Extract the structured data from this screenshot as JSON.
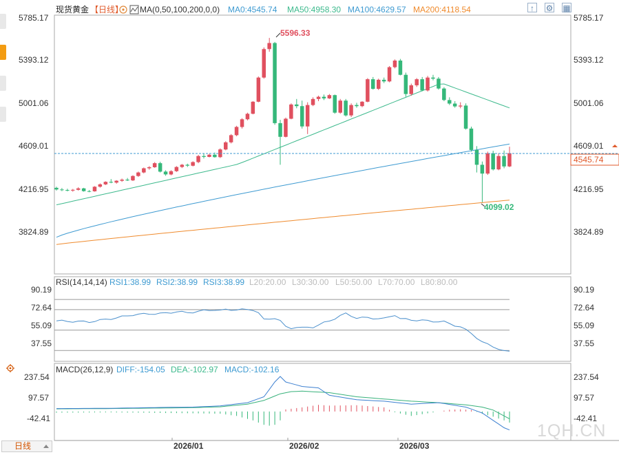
{
  "header": {
    "symbol": "现货黄金",
    "period_tag": "【日线】",
    "ma_label": "MA(0,50,100,200,0,0)",
    "ma0": "MA0:4545.74",
    "ma50": "MA50:4958.30",
    "ma100": "MA100:4629.57",
    "ma200": "MA200:4118.54"
  },
  "colors": {
    "up": "#e0505f",
    "down": "#35b87a",
    "ma50": "#3cb98c",
    "ma100": "#3d9ad1",
    "ma200": "#ef8a2c",
    "rsi": "#4a8fcc",
    "diff": "#3b7fd0",
    "dea": "#36b17a",
    "macd_pos": "#e0505f",
    "macd_neg": "#35b87a",
    "current": "#e05a2b",
    "grid": "#999999"
  },
  "icons": [
    "arrow-up-icon",
    "gear-icon",
    "grid-icon",
    "bar-icon",
    "kline-icon"
  ],
  "price_axis": {
    "ticks": [
      "5785.17",
      "5393.12",
      "5001.06",
      "4609.01",
      "4216.95",
      "3824.89"
    ],
    "current": "4545.74"
  },
  "annotations": {
    "high": "5596.33",
    "low": "4099.02"
  },
  "rsi_panel": {
    "title": "RSI(14,14,14)",
    "rsi1": "RSI1:38.99",
    "rsi2": "RSI2:38.99",
    "rsi3": "RSI3:38.99",
    "levels": [
      "L20:20.00",
      "L30:30.00",
      "L50:50.00",
      "L70:70.00",
      "L80:80.00"
    ],
    "ticks": [
      "90.19",
      "72.64",
      "55.09",
      "37.55"
    ]
  },
  "macd_panel": {
    "title": "MACD(26,12,9)",
    "diff": "DIFF:-154.05",
    "dea": "DEA:-102.97",
    "macd": "MACD:-102.16",
    "ticks": [
      "237.54",
      "97.57",
      "-42.41"
    ]
  },
  "time_axis": [
    "2026/01",
    "2026/02",
    "2026/03"
  ],
  "period_button": "日线",
  "watermark": "1QH.CN",
  "chart_data": {
    "type": "candlestick",
    "title": "现货黄金【日线】",
    "ylim": [
      3700,
      5900
    ],
    "candles": [
      [
        4230,
        4240,
        4205,
        4215
      ],
      [
        4215,
        4228,
        4200,
        4210
      ],
      [
        4210,
        4222,
        4198,
        4205
      ],
      [
        4205,
        4220,
        4195,
        4212
      ],
      [
        4212,
        4235,
        4205,
        4225
      ],
      [
        4225,
        4230,
        4195,
        4200
      ],
      [
        4200,
        4210,
        4190,
        4198
      ],
      [
        4198,
        4245,
        4195,
        4240
      ],
      [
        4240,
        4270,
        4232,
        4262
      ],
      [
        4262,
        4290,
        4255,
        4285
      ],
      [
        4285,
        4310,
        4272,
        4278
      ],
      [
        4278,
        4300,
        4268,
        4295
      ],
      [
        4295,
        4315,
        4285,
        4305
      ],
      [
        4305,
        4320,
        4292,
        4298
      ],
      [
        4298,
        4345,
        4292,
        4338
      ],
      [
        4338,
        4378,
        4330,
        4370
      ],
      [
        4370,
        4415,
        4362,
        4408
      ],
      [
        4408,
        4428,
        4395,
        4418
      ],
      [
        4418,
        4465,
        4412,
        4455
      ],
      [
        4455,
        4468,
        4370,
        4378
      ],
      [
        4378,
        4390,
        4340,
        4352
      ],
      [
        4352,
        4390,
        4345,
        4382
      ],
      [
        4382,
        4428,
        4375,
        4420
      ],
      [
        4420,
        4448,
        4410,
        4440
      ],
      [
        4440,
        4450,
        4420,
        4432
      ],
      [
        4432,
        4472,
        4425,
        4465
      ],
      [
        4465,
        4530,
        4455,
        4520
      ],
      [
        4520,
        4540,
        4498,
        4512
      ],
      [
        4512,
        4540,
        4508,
        4532
      ],
      [
        4532,
        4552,
        4505,
        4510
      ],
      [
        4510,
        4590,
        4502,
        4580
      ],
      [
        4580,
        4655,
        4572,
        4645
      ],
      [
        4645,
        4720,
        4635,
        4710
      ],
      [
        4710,
        4795,
        4700,
        4785
      ],
      [
        4785,
        4865,
        4770,
        4855
      ],
      [
        4855,
        4915,
        4845,
        4905
      ],
      [
        4905,
        5020,
        4900,
        5015
      ],
      [
        5015,
        5245,
        5010,
        5235
      ],
      [
        5235,
        5510,
        5225,
        5495
      ],
      [
        5495,
        5596.33,
        5470,
        5550
      ],
      [
        5550,
        5560,
        4805,
        4820
      ],
      [
        4820,
        4850,
        4440,
        4695
      ],
      [
        4695,
        4870,
        4690,
        4860
      ],
      [
        4860,
        5000,
        4855,
        4990
      ],
      [
        4990,
        5040,
        4955,
        4975
      ],
      [
        4975,
        5025,
        4770,
        4790
      ],
      [
        4790,
        5010,
        4720,
        4985
      ],
      [
        4985,
        5055,
        4975,
        5040
      ],
      [
        5040,
        5070,
        5020,
        5060
      ],
      [
        5060,
        5080,
        5030,
        5045
      ],
      [
        5045,
        5085,
        5040,
        5075
      ],
      [
        5075,
        5080,
        4905,
        4915
      ],
      [
        4915,
        5040,
        4905,
        5025
      ],
      [
        5025,
        5040,
        4880,
        4890
      ],
      [
        4890,
        5000,
        4875,
        4985
      ],
      [
        4985,
        5005,
        4960,
        4975
      ],
      [
        4975,
        5020,
        4965,
        5015
      ],
      [
        5015,
        5230,
        5010,
        5220
      ],
      [
        5220,
        5240,
        5125,
        5132
      ],
      [
        5132,
        5225,
        5122,
        5215
      ],
      [
        5215,
        5235,
        5185,
        5200
      ],
      [
        5200,
        5340,
        5192,
        5330
      ],
      [
        5330,
        5400,
        5320,
        5390
      ],
      [
        5390,
        5405,
        5255,
        5260
      ],
      [
        5260,
        5280,
        5060,
        5085
      ],
      [
        5085,
        5180,
        5070,
        5165
      ],
      [
        5165,
        5230,
        5150,
        5220
      ],
      [
        5220,
        5240,
        5110,
        5118
      ],
      [
        5118,
        5250,
        5108,
        5235
      ],
      [
        5235,
        5260,
        5210,
        5225
      ],
      [
        5225,
        5240,
        5125,
        5135
      ],
      [
        5135,
        5148,
        5020,
        5030
      ],
      [
        5030,
        5055,
        4985,
        4998
      ],
      [
        4998,
        5020,
        4960,
        4972
      ],
      [
        4972,
        5010,
        4955,
        4980
      ],
      [
        4980,
        5000,
        4760,
        4770
      ],
      [
        4770,
        4788,
        4560,
        4575
      ],
      [
        4575,
        4610,
        4370,
        4440
      ],
      [
        4440,
        4470,
        4099.02,
        4360
      ],
      [
        4360,
        4560,
        4348,
        4545
      ],
      [
        4545,
        4568,
        4388,
        4398
      ],
      [
        4398,
        4545,
        4390,
        4520
      ],
      [
        4520,
        4570,
        4408,
        4425
      ],
      [
        4425,
        4605,
        4418,
        4545.74
      ]
    ],
    "ma50_endpoints": {
      "start": 4075,
      "end": 4958.3
    },
    "ma100_endpoints": {
      "start": 3780,
      "end": 4629.57
    },
    "ma200_endpoints": {
      "start": 3714,
      "end": 4118.54
    },
    "rsi_ylim": [
      25,
      100
    ],
    "rsi_levels": [
      20,
      30,
      50,
      70,
      80
    ],
    "rsi_anchors": [
      [
        0,
        59
      ],
      [
        6,
        58
      ],
      [
        11,
        62
      ],
      [
        14,
        65
      ],
      [
        17,
        66
      ],
      [
        19,
        66
      ],
      [
        22,
        68
      ],
      [
        24,
        67
      ],
      [
        27,
        69
      ],
      [
        29,
        70
      ],
      [
        30,
        69
      ],
      [
        31,
        70
      ],
      [
        32,
        70
      ],
      [
        34,
        70
      ],
      [
        36,
        70
      ],
      [
        37,
        67
      ],
      [
        38,
        60
      ],
      [
        40,
        62
      ],
      [
        41,
        59
      ],
      [
        42,
        53
      ],
      [
        43,
        52
      ],
      [
        44,
        53
      ],
      [
        45,
        52
      ],
      [
        47,
        53
      ],
      [
        48,
        55
      ],
      [
        50,
        59
      ],
      [
        52,
        64
      ],
      [
        53,
        66
      ],
      [
        55,
        62
      ],
      [
        57,
        62
      ],
      [
        60,
        61
      ],
      [
        62,
        65
      ],
      [
        63,
        61
      ],
      [
        65,
        60
      ],
      [
        68,
        59
      ],
      [
        71,
        58
      ],
      [
        74,
        53
      ],
      [
        75,
        50
      ],
      [
        76,
        47
      ],
      [
        78,
        38
      ],
      [
        80,
        34
      ],
      [
        82,
        29
      ],
      [
        83,
        29
      ],
      [
        84,
        32
      ],
      [
        85,
        31
      ],
      [
        86,
        35
      ],
      [
        87,
        38.99
      ]
    ],
    "macd_ylim": [
      -160,
      250
    ],
    "diff_anchors": [
      [
        0,
        20
      ],
      [
        10,
        22
      ],
      [
        20,
        28
      ],
      [
        25,
        30
      ],
      [
        30,
        38
      ],
      [
        35,
        60
      ],
      [
        38,
        100
      ],
      [
        39,
        150
      ],
      [
        40,
        200
      ],
      [
        41,
        237.54
      ],
      [
        42,
        200
      ],
      [
        45,
        170
      ],
      [
        48,
        160
      ],
      [
        50,
        110
      ],
      [
        55,
        80
      ],
      [
        60,
        70
      ],
      [
        65,
        50
      ],
      [
        70,
        60
      ],
      [
        75,
        30
      ],
      [
        78,
        -10
      ],
      [
        80,
        -60
      ],
      [
        82,
        -110
      ],
      [
        84,
        -140
      ],
      [
        86,
        -154.05
      ],
      [
        87,
        -150
      ]
    ],
    "dea_anchors": [
      [
        0,
        18
      ],
      [
        10,
        20
      ],
      [
        20,
        24
      ],
      [
        25,
        26
      ],
      [
        30,
        32
      ],
      [
        35,
        50
      ],
      [
        38,
        75
      ],
      [
        40,
        105
      ],
      [
        41,
        120
      ],
      [
        43,
        135
      ],
      [
        45,
        138
      ],
      [
        48,
        132
      ],
      [
        50,
        128
      ],
      [
        55,
        100
      ],
      [
        60,
        85
      ],
      [
        65,
        70
      ],
      [
        70,
        60
      ],
      [
        75,
        45
      ],
      [
        78,
        30
      ],
      [
        80,
        10
      ],
      [
        82,
        -30
      ],
      [
        84,
        -70
      ],
      [
        86,
        -102.97
      ],
      [
        87,
        -102
      ]
    ],
    "hist_anchors": [
      [
        0,
        -8
      ],
      [
        10,
        -6
      ],
      [
        20,
        -10
      ],
      [
        25,
        -12
      ],
      [
        30,
        -15
      ],
      [
        33,
        -30
      ],
      [
        36,
        -60
      ],
      [
        38,
        -90
      ],
      [
        39,
        -96
      ],
      [
        40,
        -90
      ],
      [
        41,
        -60
      ],
      [
        42,
        14
      ],
      [
        45,
        28
      ],
      [
        48,
        45
      ],
      [
        50,
        40
      ],
      [
        55,
        43
      ],
      [
        60,
        28
      ],
      [
        62,
        -5
      ],
      [
        65,
        -30
      ],
      [
        70,
        0
      ],
      [
        72,
        12
      ],
      [
        74,
        15
      ],
      [
        76,
        10
      ],
      [
        78,
        -15
      ],
      [
        80,
        -35
      ],
      [
        82,
        -60
      ],
      [
        84,
        -90
      ],
      [
        86,
        -102.16
      ],
      [
        87,
        -96
      ]
    ]
  }
}
